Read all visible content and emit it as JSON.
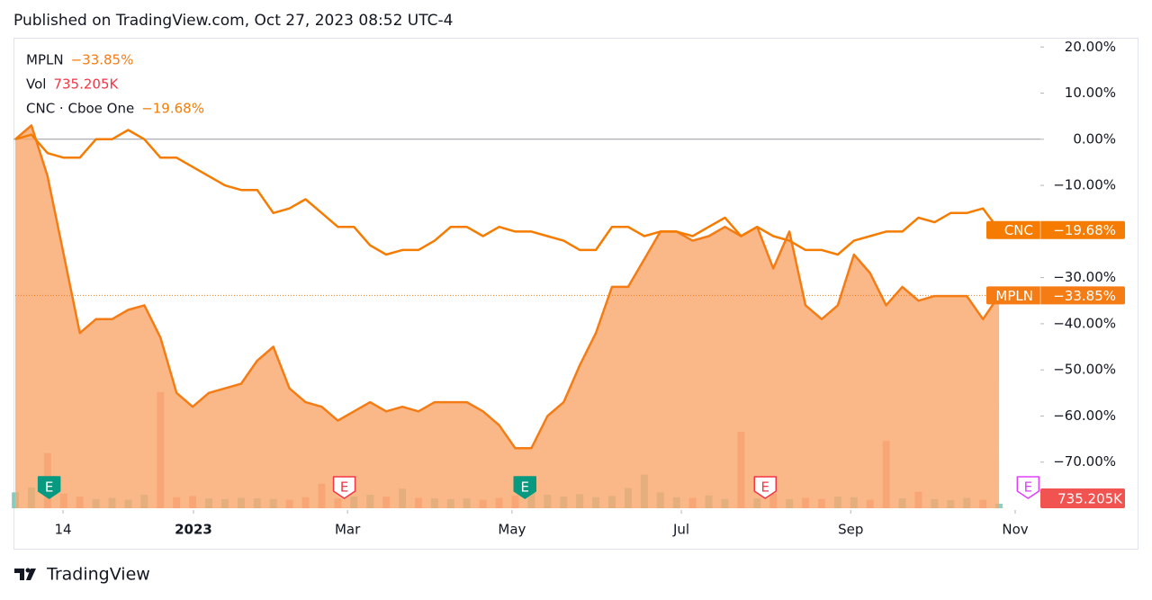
{
  "header": "Published on TradingView.com, Oct 27, 2023 08:52 UTC-4",
  "footer": "TradingView",
  "chart_data": {
    "type": "line",
    "xlim": [
      0,
      62
    ],
    "xticks": [
      {
        "value": 2.96,
        "label": "14"
      },
      {
        "value": 11.05,
        "label": "2023"
      },
      {
        "value": 20.6,
        "label": "Mar"
      },
      {
        "value": 30.8,
        "label": "May"
      },
      {
        "value": 41.3,
        "label": "Jul"
      },
      {
        "value": 51.8,
        "label": "Sep"
      },
      {
        "value": 62,
        "label": "Nov"
      }
    ],
    "ylim": [
      -80,
      22
    ],
    "yticks": [
      {
        "value": 20,
        "label": "20.00%"
      },
      {
        "value": 10,
        "label": "10.00%"
      },
      {
        "value": 0,
        "label": "0.00%"
      },
      {
        "value": -10,
        "label": "−10.00%"
      },
      {
        "value": -20,
        "label": "−20.00%"
      },
      {
        "value": -30,
        "label": "−30.00%"
      },
      {
        "value": -40,
        "label": "−40.00%"
      },
      {
        "value": -50,
        "label": "−50.00%"
      },
      {
        "value": -60,
        "label": "−60.00%"
      },
      {
        "value": -70,
        "label": "−70.00%"
      }
    ],
    "series": [
      {
        "name": "MPLN",
        "tag": "MPLN",
        "color": "#f57c14",
        "area": true,
        "area_color": "#f9a66a",
        "last_label": "−33.85%",
        "values": [
          0,
          3,
          -8,
          -25,
          -42,
          -39,
          -39,
          -37,
          -36,
          -43,
          -55,
          -58,
          -55,
          -54,
          -53,
          -48,
          -45,
          -54,
          -57,
          -58,
          -61,
          -59,
          -57,
          -59,
          -58,
          -59,
          -57,
          -57,
          -57,
          -59,
          -62,
          -67,
          -67,
          -60,
          -57,
          -49,
          -42,
          -32,
          -32,
          -26,
          -20,
          -20,
          -22,
          -21,
          -19,
          -21,
          -19,
          -28,
          -20,
          -36,
          -39,
          -36,
          -25,
          -29,
          -36,
          -32,
          -35,
          -34,
          -34,
          -34,
          -39,
          -33.85
        ]
      },
      {
        "name": "CNC · Cboe One",
        "tag": "CNC",
        "color": "#f57c00",
        "area": false,
        "last_label": "−19.68%",
        "values": [
          0,
          1,
          -3,
          -4,
          -4,
          0,
          0,
          2,
          0,
          -4,
          -4,
          -6,
          -8,
          -10,
          -11,
          -11,
          -16,
          -15,
          -13,
          -16,
          -19,
          -19,
          -23,
          -25,
          -24,
          -24,
          -22,
          -19,
          -19,
          -21,
          -19,
          -20,
          -20,
          -21,
          -22,
          -24,
          -24,
          -19,
          -19,
          -21,
          -20,
          -20,
          -21,
          -19,
          -17,
          -21,
          -19,
          -21,
          -22,
          -24,
          -24,
          -25,
          -22,
          -21,
          -20,
          -20,
          -17,
          -18,
          -16,
          -16,
          -15,
          -19.68
        ]
      }
    ],
    "volume": {
      "name": "Vol",
      "color": "#f23645",
      "up_color": "#089981",
      "down_color": "#f23645",
      "last_label": "735.205K",
      "values": [
        2600,
        3400,
        9000,
        2400,
        1900,
        1500,
        1700,
        1400,
        2200,
        19000,
        1800,
        2000,
        1600,
        1500,
        1700,
        1600,
        1500,
        1400,
        1800,
        4000,
        1600,
        1900,
        2200,
        1900,
        3200,
        1700,
        1600,
        1500,
        1600,
        1400,
        1700,
        2100,
        3200,
        2200,
        1900,
        2300,
        1800,
        2000,
        3300,
        5500,
        2600,
        1800,
        1700,
        2100,
        1500,
        12500,
        1600,
        2400,
        1500,
        1700,
        1500,
        1900,
        1800,
        1400,
        11000,
        1600,
        2700,
        1500,
        1300,
        1700,
        1400,
        735.205
      ]
    },
    "events": [
      {
        "label": "E",
        "at": 2.1,
        "color": "#089981",
        "filled": true
      },
      {
        "label": "E",
        "at": 20.4,
        "color": "#f23645",
        "filled": false
      },
      {
        "label": "E",
        "at": 31.6,
        "color": "#089981",
        "filled": true
      },
      {
        "label": "E",
        "at": 46.5,
        "color": "#f23645",
        "filled": false
      },
      {
        "label": "E",
        "at": 62.8,
        "color": "#e040fb",
        "filled": false
      }
    ]
  }
}
